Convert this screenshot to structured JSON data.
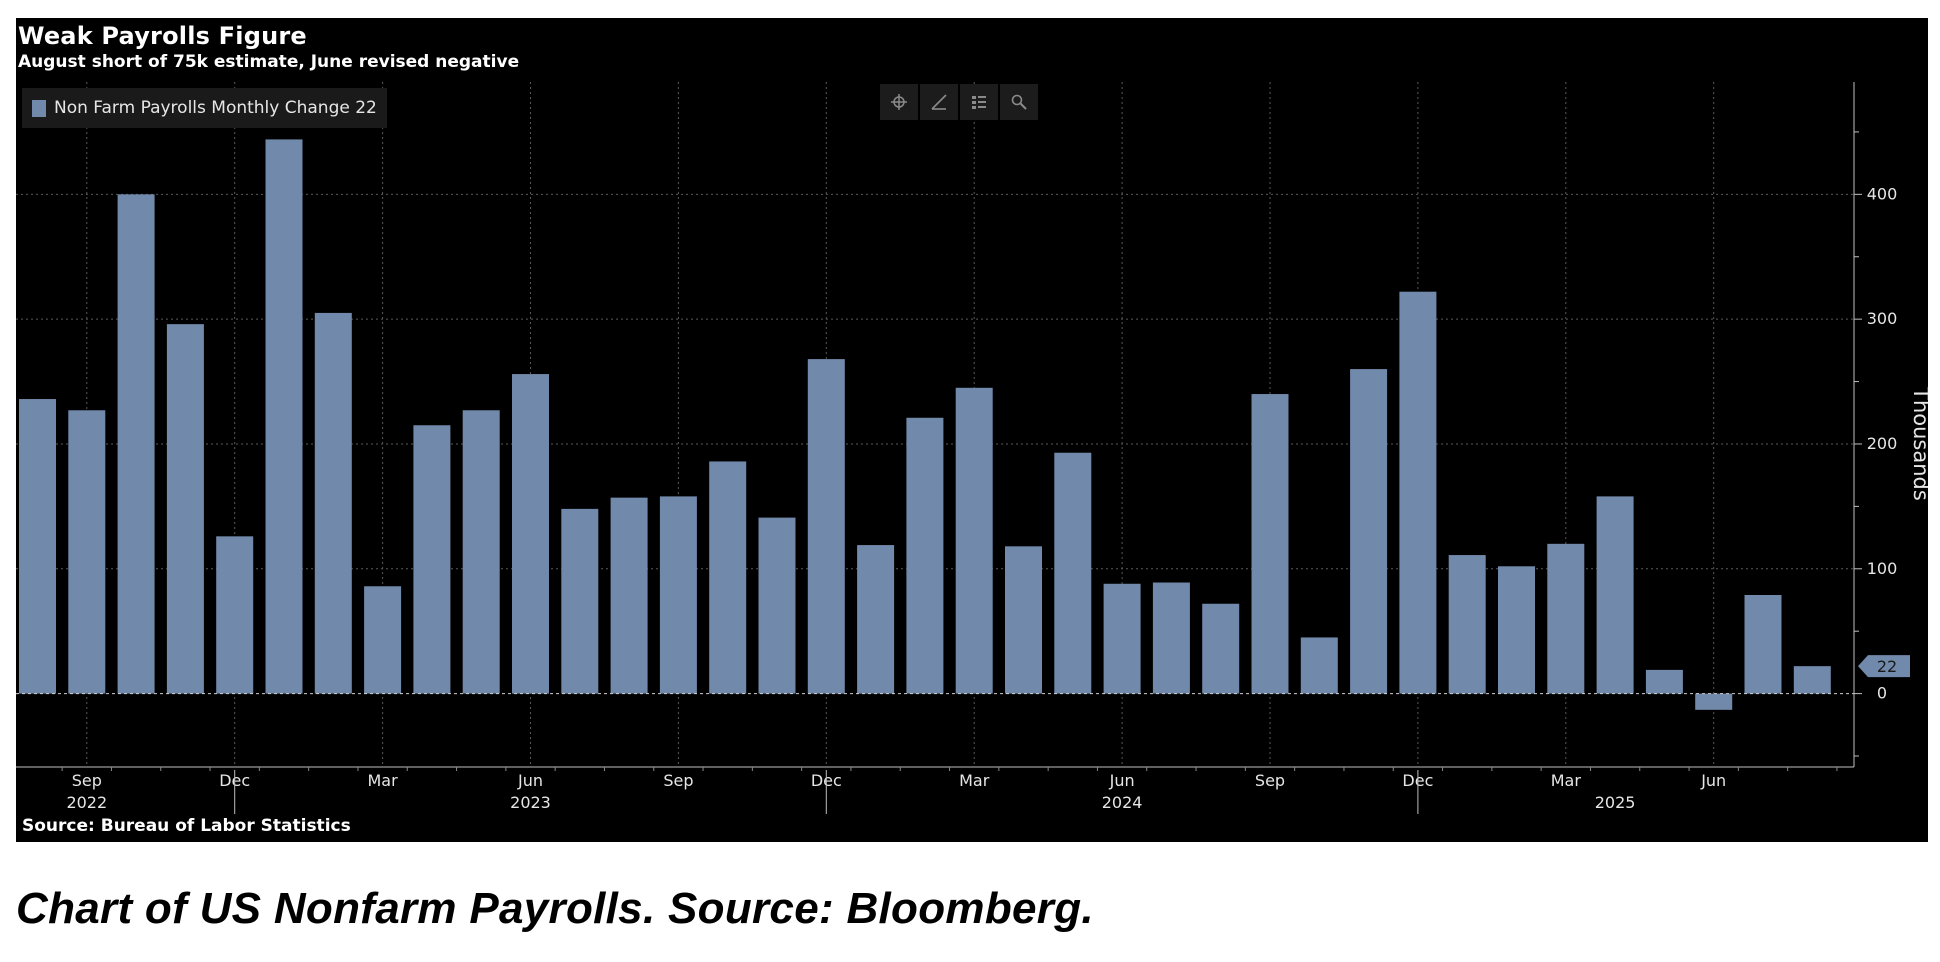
{
  "caption": "Chart of US Nonfarm Payrolls. Source: Bloomberg.",
  "colors": {
    "background": "#000000",
    "bar": "#7189ab",
    "grid": "#5a5a5a",
    "text": "#e6e6e6"
  },
  "toolbar": {
    "icons": [
      "crosshair-icon",
      "draw-line-icon",
      "legend-list-icon",
      "zoom-icon"
    ]
  },
  "chart_data": {
    "type": "bar",
    "title": "Weak Payrolls Figure",
    "subtitle": "August short of 75k estimate, June revised negative",
    "source": "Source: Bureau of Labor Statistics",
    "ylabel": "Thousands",
    "ylim": [
      -58,
      490
    ],
    "yticks": [
      0,
      100,
      200,
      300,
      400
    ],
    "grid": true,
    "legend_position": "top-left",
    "series": [
      {
        "name": "Non Farm Payrolls Monthly Change 22",
        "color": "#7189ab",
        "values": [
          236,
          227,
          400,
          296,
          126,
          444,
          305,
          86,
          215,
          227,
          256,
          148,
          157,
          158,
          186,
          141,
          268,
          119,
          221,
          245,
          118,
          193,
          88,
          89,
          72,
          240,
          45,
          260,
          322,
          111,
          102,
          120,
          158,
          19,
          -13,
          79,
          22
        ]
      }
    ],
    "categories": [
      "2022-08",
      "2022-09",
      "2022-10",
      "2022-11",
      "2022-12",
      "2023-01",
      "2023-02",
      "2023-03",
      "2023-04",
      "2023-05",
      "2023-06",
      "2023-07",
      "2023-08",
      "2023-09",
      "2023-10",
      "2023-11",
      "2023-12",
      "2024-01",
      "2024-02",
      "2024-03",
      "2024-04",
      "2024-05",
      "2024-06",
      "2024-07",
      "2024-08",
      "2024-09",
      "2024-10",
      "2024-11",
      "2024-12",
      "2025-01",
      "2025-02",
      "2025-03",
      "2025-04",
      "2025-05",
      "2025-06",
      "2025-07",
      "2025-08"
    ],
    "x_month_ticks": [
      {
        "category": "2022-09",
        "label": "Sep"
      },
      {
        "category": "2022-12",
        "label": "Dec"
      },
      {
        "category": "2023-03",
        "label": "Mar"
      },
      {
        "category": "2023-06",
        "label": "Jun"
      },
      {
        "category": "2023-09",
        "label": "Sep"
      },
      {
        "category": "2023-12",
        "label": "Dec"
      },
      {
        "category": "2024-03",
        "label": "Mar"
      },
      {
        "category": "2024-06",
        "label": "Jun"
      },
      {
        "category": "2024-09",
        "label": "Sep"
      },
      {
        "category": "2024-12",
        "label": "Dec"
      },
      {
        "category": "2025-03",
        "label": "Mar"
      },
      {
        "category": "2025-06",
        "label": "Jun"
      }
    ],
    "x_year_labels": [
      {
        "category": "2022-09",
        "label": "2022"
      },
      {
        "category": "2023-06",
        "label": "2023"
      },
      {
        "category": "2024-06",
        "label": "2024"
      },
      {
        "category": "2025-04",
        "label": "2025"
      }
    ],
    "year_separators": [
      "2022-12",
      "2023-12",
      "2024-12"
    ],
    "last_value_marker": {
      "value": 22,
      "label": "22"
    }
  }
}
